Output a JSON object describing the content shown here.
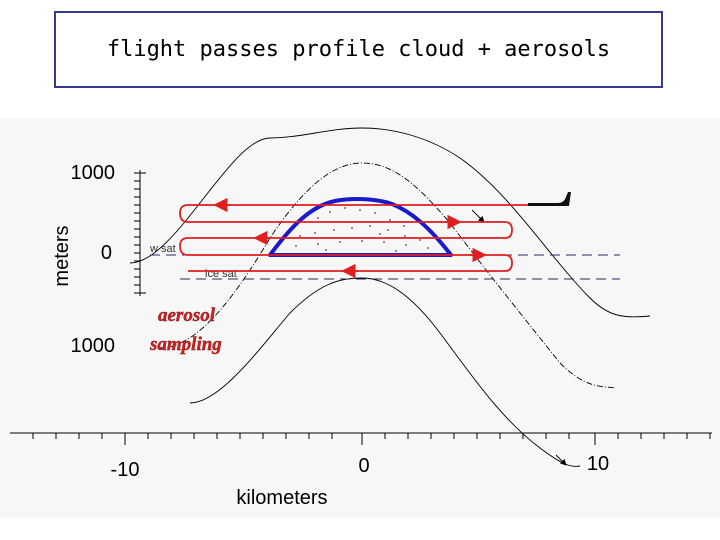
{
  "slide": {
    "title": "flight passes profile cloud + aerosols"
  },
  "diagram": {
    "y_axis": {
      "label": "meters",
      "tick_labels": [
        "1000",
        "0",
        "1000"
      ]
    },
    "x_axis": {
      "label": "kilometers",
      "tick_labels": [
        "-10",
        "0",
        "10"
      ]
    },
    "levels": {
      "water_saturation": "w sat",
      "ice_saturation": "ice sat"
    },
    "annotation": {
      "line1": "aerosol",
      "line2": "sampling"
    },
    "colors": {
      "flight_track": "#e02020",
      "cloud_boundary": "#1a1acc",
      "streamlines": "#000000"
    }
  }
}
